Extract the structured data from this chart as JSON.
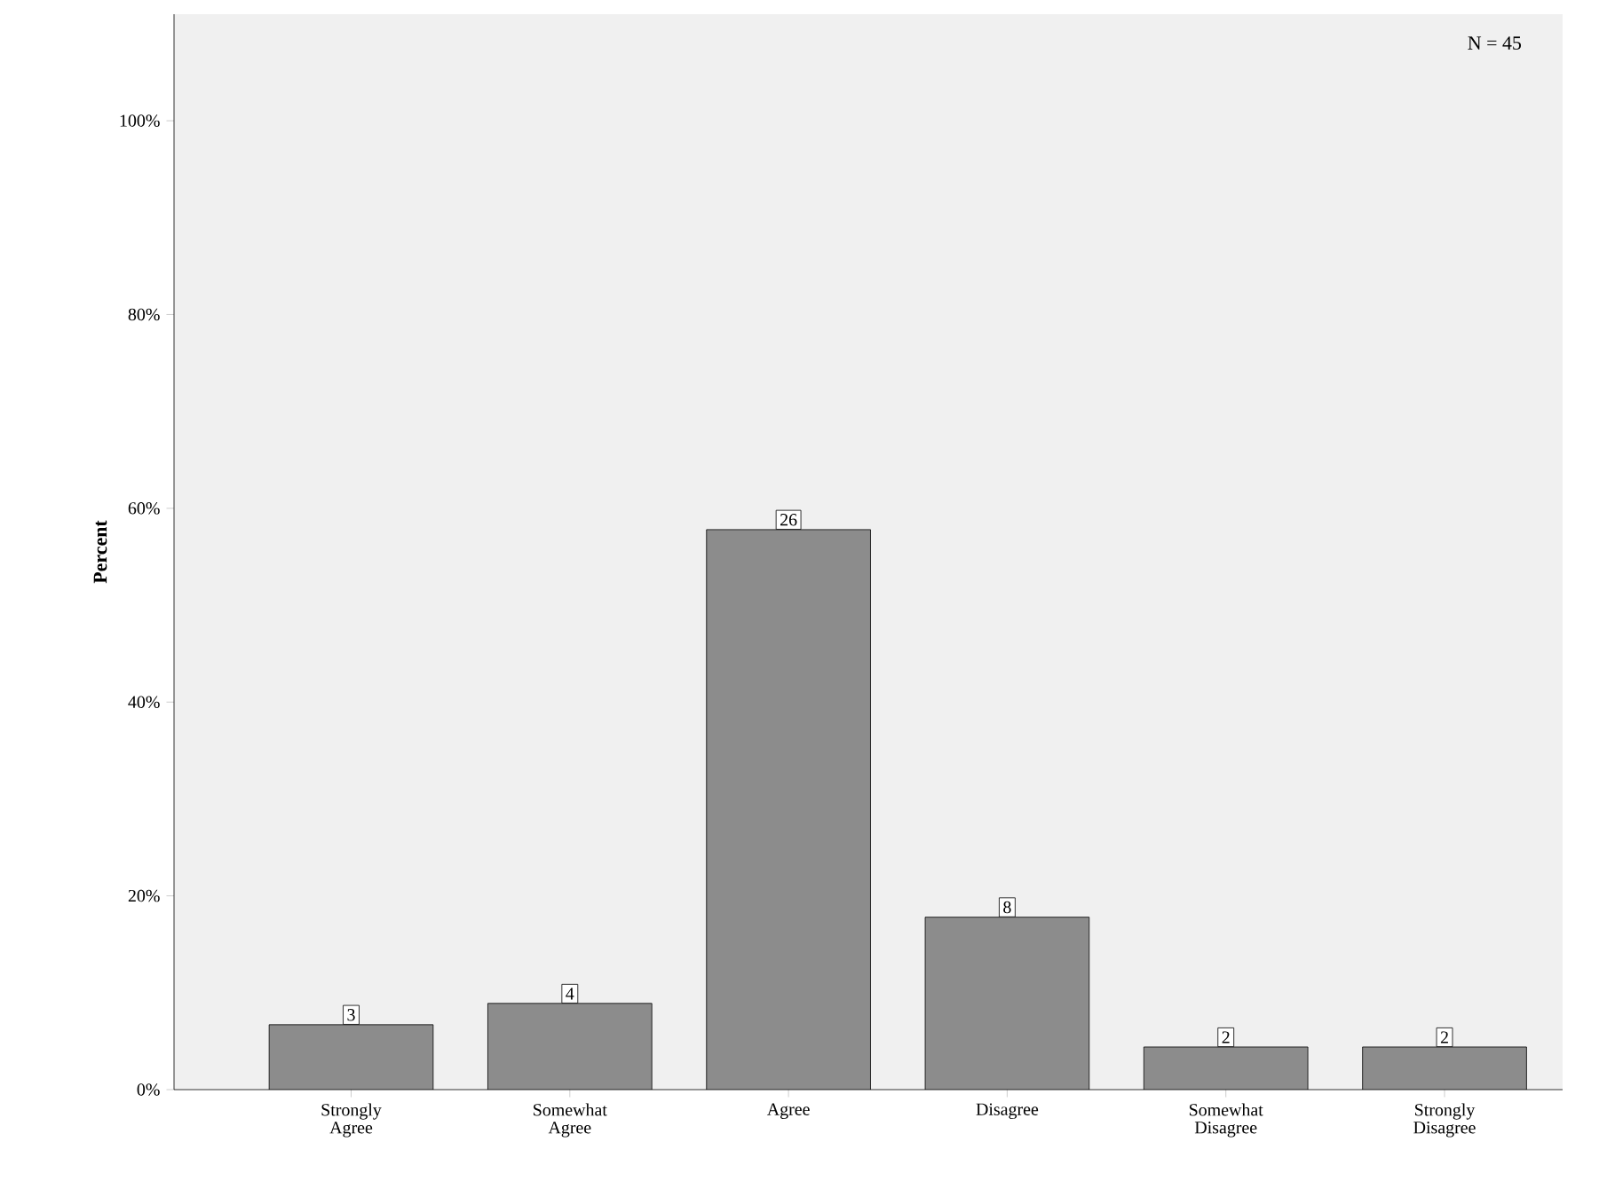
{
  "chart_data": {
    "type": "bar",
    "ylabel": "Percent",
    "categories": [
      "Strongly Agree",
      "Somewhat Agree",
      "Agree",
      "Disagree",
      "Somewhat Disagree",
      "Strongly Disagree"
    ],
    "values": [
      6.7,
      8.9,
      57.8,
      17.8,
      4.4,
      4.4
    ],
    "color": "#8c8c8c",
    "ylim": [
      0,
      111
    ],
    "yticks": [
      {
        "value": 0,
        "label": "0%"
      },
      {
        "value": 20,
        "label": "20%"
      },
      {
        "value": 40,
        "label": "40%"
      },
      {
        "value": 60,
        "label": "60%"
      },
      {
        "value": 80,
        "label": "80%"
      },
      {
        "value": 100,
        "label": "100%"
      }
    ],
    "annotations": [
      "N = 45",
      {
        "text": "3",
        "x": "Strongly Agree",
        "y": 6.7
      },
      {
        "text": "4",
        "x": "Somewhat Agree",
        "y": 8.9
      },
      {
        "text": "26",
        "x": "Agree",
        "y": 57.8
      },
      {
        "text": "8",
        "x": "Disagree",
        "y": 17.8
      },
      {
        "text": "2",
        "x": "Somewhat Disagree",
        "y": 4.4
      },
      {
        "text": "2",
        "x": "Strongly Disagree",
        "y": 4.4
      }
    ],
    "grid": false
  }
}
